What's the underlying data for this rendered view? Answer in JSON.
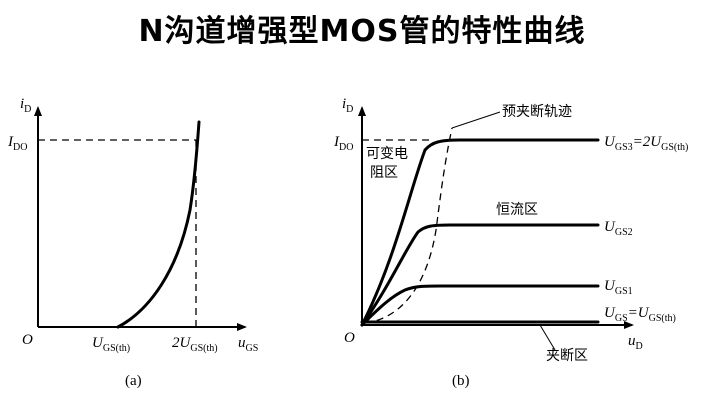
{
  "title": "N沟道增强型MOS管的特性曲线",
  "panel_a": {
    "y_axis_label": "i",
    "y_axis_sub": "D",
    "idss_label": "I",
    "idss_sub": "DO",
    "origin": "O",
    "x_tick1_main": "U",
    "x_tick1_sub": "GS(th)",
    "x_tick2_main": "2U",
    "x_tick2_sub": "GS(th)",
    "x_axis_label": "u",
    "x_axis_sub": "GS",
    "caption": "(a)"
  },
  "panel_b": {
    "y_axis_label": "i",
    "y_axis_sub": "D",
    "idss_label": "I",
    "idss_sub": "DO",
    "origin": "O",
    "x_axis_label": "u",
    "x_axis_sub": "D",
    "pinch_off_trace_label": "预夹断轨迹",
    "variable_resistance_label_1": "可变电",
    "variable_resistance_label_2": "阻区",
    "constant_current_label": "恒流区",
    "cutoff_label": "夹断区",
    "curve3_main": "U",
    "curve3_sub": "GS3",
    "curve3_eq": "=2U",
    "curve3_eq_sub": "GS(th)",
    "curve2_main": "U",
    "curve2_sub": "GS2",
    "curve1_main": "U",
    "curve1_sub": "GS1",
    "curve0_main": "U",
    "curve0_sub": "GS",
    "curve0_eq": "=U",
    "curve0_eq_sub": "GS(th)",
    "caption": "(b)"
  }
}
